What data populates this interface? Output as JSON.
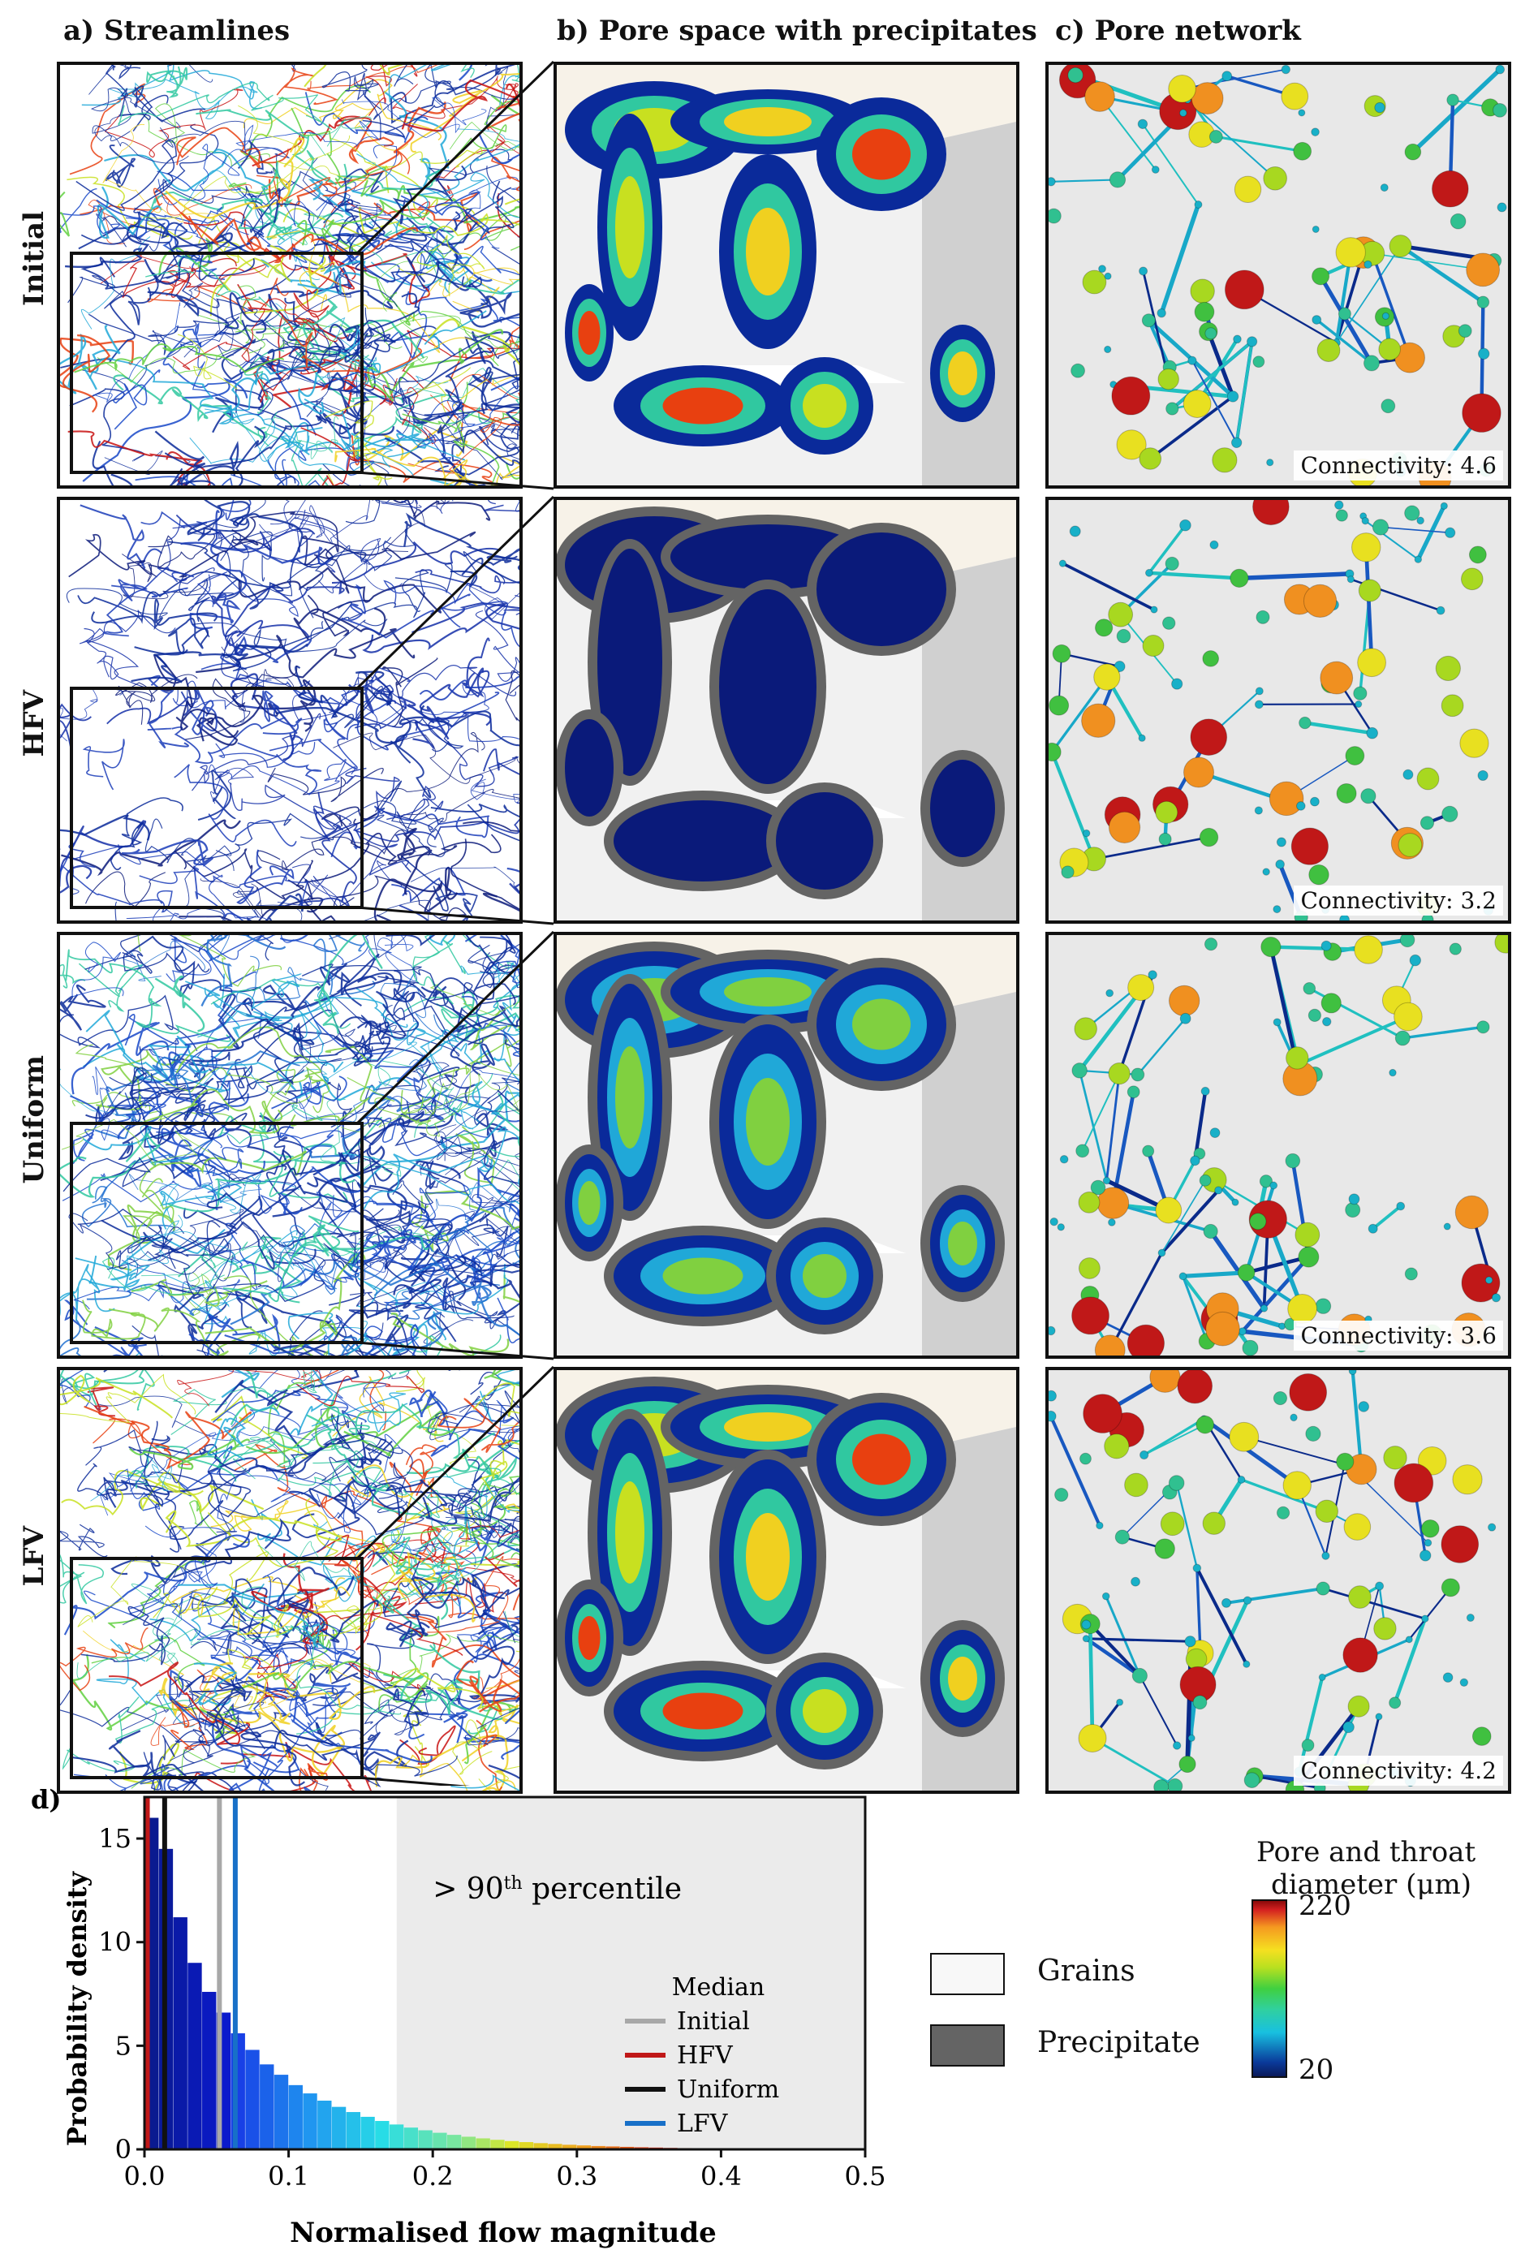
{
  "columns": {
    "a": "a) Streamlines",
    "b": "b) Pore space with precipitates",
    "c": "c) Pore network"
  },
  "rows": [
    {
      "label": "Initial",
      "connectivity": "Connectivity: 4.6",
      "colors": "hot"
    },
    {
      "label": "HFV",
      "connectivity": "Connectivity: 3.2",
      "colors": "blue"
    },
    {
      "label": "Uniform",
      "connectivity": "Connectivity: 3.6",
      "colors": "mid"
    },
    {
      "label": "LFV",
      "connectivity": "Connectivity: 4.2",
      "colors": "hot"
    }
  ],
  "legend_materials": {
    "grains": "Grains",
    "precipitate": "Precipitate",
    "grains_color": "#f8f8f8",
    "precipitate_color": "#646464"
  },
  "colorbar": {
    "title_line1": "Pore and throat",
    "title_line2": "diameter (μm)",
    "max": "220",
    "min": "20"
  },
  "chart_data": {
    "type": "bar",
    "panel_label": "d)",
    "xlabel": "Normalised flow magnitude",
    "ylabel": "Probability density",
    "xlim": [
      0,
      0.5
    ],
    "ylim": [
      0,
      17
    ],
    "xticks": [
      "0.0",
      "0.1",
      "0.2",
      "0.3",
      "0.4",
      "0.5"
    ],
    "yticks": [
      "0",
      "5",
      "10",
      "15"
    ],
    "bin_width": 0.01,
    "values": [
      16.0,
      14.5,
      11.2,
      9.0,
      7.6,
      6.6,
      5.6,
      4.8,
      4.1,
      3.6,
      3.1,
      2.7,
      2.35,
      2.05,
      1.8,
      1.57,
      1.37,
      1.2,
      1.05,
      0.92,
      0.8,
      0.7,
      0.61,
      0.53,
      0.46,
      0.4,
      0.35,
      0.3,
      0.26,
      0.22,
      0.19,
      0.16,
      0.14,
      0.12,
      0.1,
      0.085,
      0.07,
      0.06,
      0.05,
      0.04,
      0.03,
      0.025,
      0.02,
      0.015,
      0.01,
      0.008,
      0.006,
      0.004,
      0.003,
      0.002
    ],
    "shaded_region": {
      "from": 0.175,
      "to": 0.5,
      "label_pre": "> 90",
      "label_sup": "th",
      "label_post": " percentile"
    },
    "legend_title": "Median",
    "medians": [
      {
        "name": "Initial",
        "x": 0.052,
        "color": "#a8a8a8"
      },
      {
        "name": "HFV",
        "x": 0.002,
        "color": "#c01818"
      },
      {
        "name": "Uniform",
        "x": 0.014,
        "color": "#111111"
      },
      {
        "name": "LFV",
        "x": 0.063,
        "color": "#1870c8"
      }
    ]
  }
}
